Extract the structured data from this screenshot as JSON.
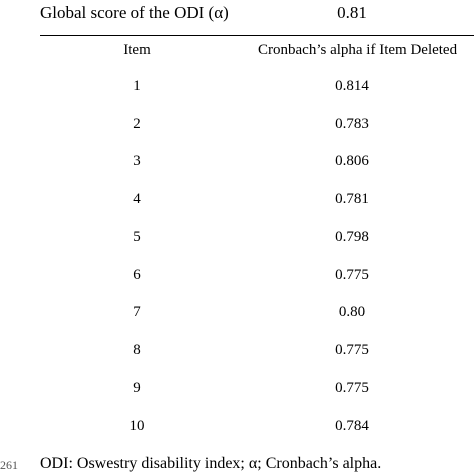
{
  "global": {
    "label": "Global score of the ODI (α)",
    "value": "0.81"
  },
  "table": {
    "headers": {
      "item": "Item",
      "alpha": "Cronbach’s alpha if Item Deleted"
    },
    "rows": [
      {
        "item": "1",
        "alpha": "0.814"
      },
      {
        "item": "2",
        "alpha": "0.783"
      },
      {
        "item": "3",
        "alpha": "0.806"
      },
      {
        "item": "4",
        "alpha": "0.781"
      },
      {
        "item": "5",
        "alpha": "0.798"
      },
      {
        "item": "6",
        "alpha": "0.775"
      },
      {
        "item": "7",
        "alpha": "0.80"
      },
      {
        "item": "8",
        "alpha": "0.775"
      },
      {
        "item": "9",
        "alpha": "0.775"
      },
      {
        "item": "10",
        "alpha": "0.784"
      }
    ]
  },
  "line_number": "261",
  "footnote": "ODI: Oswestry disability index; α; Cronbach’s alpha."
}
